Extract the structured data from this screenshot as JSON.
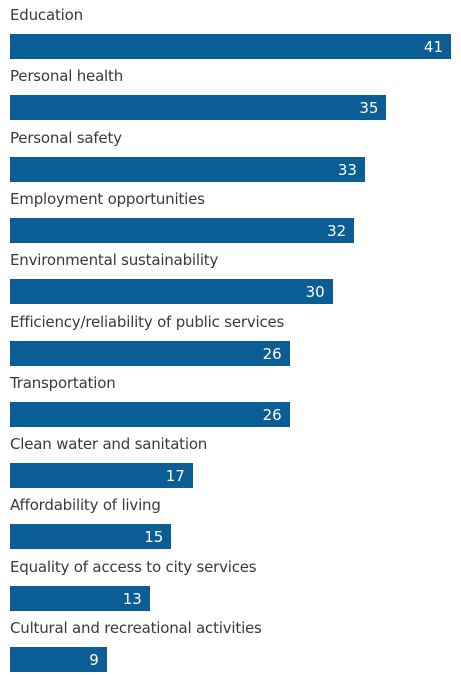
{
  "chart_data": {
    "type": "bar",
    "orientation": "horizontal",
    "title": "",
    "xlabel": "",
    "ylabel": "",
    "xlim": [
      0,
      41
    ],
    "grid": false,
    "categories": [
      "Education",
      "Personal health",
      "Personal safety",
      "Employment opportunities",
      "Environmental sustainability",
      "Efficiency/reliability of public services",
      "Transportation",
      "Clean water and sanitation",
      "Affordability of living",
      "Equality of access to city services",
      "Cultural and recreational activities"
    ],
    "values": [
      41,
      35,
      33,
      32,
      30,
      26,
      26,
      17,
      15,
      13,
      9
    ],
    "data_labels": [
      "41",
      "35",
      "33",
      "32",
      "30",
      "26",
      "26",
      "17",
      "15",
      "13",
      "9"
    ],
    "bar_color": "#0b5e95",
    "label_color": "#3a3a3a",
    "value_label_color": "#ffffff"
  }
}
